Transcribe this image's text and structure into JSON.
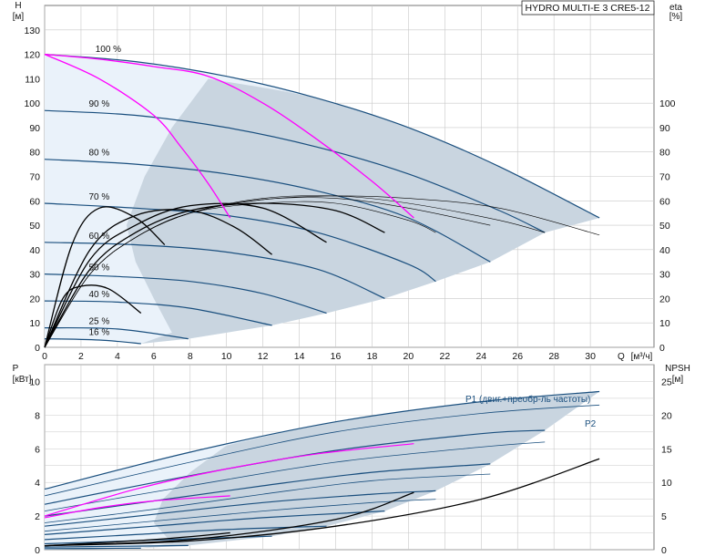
{
  "chart_data": [
    {
      "type": "line",
      "title": "HYDRO MULTI-E 3 CRE5-12",
      "ylabel": "H",
      "yunit": "[м]",
      "y2label": "eta",
      "y2unit": "[%]",
      "xlabel": "Q",
      "xunit": "[м³/ч]",
      "x_ticks": [
        0,
        2,
        4,
        6,
        8,
        10,
        12,
        14,
        16,
        18,
        20,
        22,
        24,
        26,
        28,
        30
      ],
      "y_ticks": [
        0,
        10,
        20,
        30,
        40,
        50,
        60,
        70,
        80,
        90,
        100,
        110,
        120,
        130
      ],
      "y2_ticks": [
        0,
        10,
        20,
        30,
        40,
        50,
        60,
        70,
        80,
        90,
        100
      ],
      "xlim": [
        0,
        33.5
      ],
      "ylim": [
        0,
        140
      ],
      "grid": true,
      "curve_labels": [
        "100 %",
        "90 %",
        "80 %",
        "70 %",
        "60 %",
        "50 %",
        "40 %",
        "25 %",
        "16 %"
      ],
      "head_curves": [
        {
          "speed": 100,
          "x": [
            0,
            5,
            10,
            15,
            20,
            25,
            30.5
          ],
          "y": [
            120,
            117,
            111,
            102,
            90,
            74,
            53
          ]
        },
        {
          "speed": 90,
          "x": [
            0,
            5,
            10,
            15,
            20,
            25,
            27.5
          ],
          "y": [
            97,
            95,
            90,
            82,
            71,
            56,
            47
          ]
        },
        {
          "speed": 80,
          "x": [
            0,
            5,
            10,
            15,
            20,
            24.5
          ],
          "y": [
            77,
            75,
            71,
            64,
            53,
            35
          ]
        },
        {
          "speed": 70,
          "x": [
            0,
            5,
            10,
            15,
            20,
            21.5
          ],
          "y": [
            59,
            57,
            54,
            47,
            34,
            27
          ]
        },
        {
          "speed": 60,
          "x": [
            0,
            5,
            10,
            15,
            18.7
          ],
          "y": [
            43,
            42,
            39,
            32,
            20
          ]
        },
        {
          "speed": 50,
          "x": [
            0,
            4,
            8,
            12,
            15.5
          ],
          "y": [
            30,
            29,
            27,
            22,
            14
          ]
        },
        {
          "speed": 40,
          "x": [
            0,
            4,
            8,
            12.5
          ],
          "y": [
            19,
            18.5,
            16,
            9
          ]
        },
        {
          "speed": 25,
          "x": [
            0,
            4,
            7.9
          ],
          "y": [
            8,
            7.5,
            3.5
          ]
        },
        {
          "speed": 16,
          "x": [
            0,
            3,
            5.3
          ],
          "y": [
            3.5,
            3,
            1.5
          ]
        }
      ],
      "eff_curves": [
        {
          "x": [
            0,
            2.5,
            5,
            8,
            12,
            16,
            20,
            25,
            30.5
          ],
          "y": [
            0,
            30,
            45,
            55,
            60.5,
            62,
            61,
            57,
            46
          ]
        },
        {
          "x": [
            0,
            2.5,
            5,
            8,
            12,
            16,
            20,
            25,
            27.5
          ],
          "y": [
            0,
            30,
            45,
            55,
            61,
            62,
            59,
            52,
            47
          ]
        },
        {
          "x": [
            0,
            2.5,
            5,
            8,
            12,
            16,
            20,
            24.5
          ],
          "y": [
            0,
            30,
            45,
            55,
            60.5,
            61,
            57,
            50
          ]
        },
        {
          "x": [
            0,
            2.5,
            5,
            8,
            12,
            16,
            20,
            21.5
          ],
          "y": [
            0,
            30,
            45,
            55,
            59,
            59,
            52,
            47
          ]
        },
        {
          "x": [
            0,
            2.5,
            5,
            8,
            12,
            16,
            18.7
          ],
          "y": [
            0,
            32,
            47,
            56,
            59,
            56,
            47
          ]
        },
        {
          "x": [
            0,
            2.5,
            5,
            8,
            12,
            15.5
          ],
          "y": [
            0,
            36,
            50,
            58,
            57,
            43
          ]
        },
        {
          "x": [
            0,
            2.5,
            5,
            8,
            10.5,
            12.5
          ],
          "y": [
            0,
            40,
            54,
            56,
            49,
            38
          ]
        },
        {
          "x": [
            0,
            1.5,
            3,
            5,
            6.6
          ],
          "y": [
            0,
            42,
            57,
            53,
            42
          ]
        },
        {
          "x": [
            0,
            1,
            2,
            3.5,
            5.3
          ],
          "y": [
            0,
            20,
            25,
            24,
            14
          ]
        }
      ],
      "constant_pressure_curves": [
        {
          "x": [
            0,
            3,
            6,
            9,
            12,
            15,
            18,
            20.3
          ],
          "y": [
            120,
            118,
            115,
            111,
            100,
            85,
            68,
            53
          ]
        },
        {
          "x": [
            0,
            3,
            6,
            7.5,
            9,
            10.2
          ],
          "y": [
            120,
            110,
            95,
            82,
            67,
            53
          ]
        }
      ]
    },
    {
      "type": "line",
      "ylabel": "P",
      "yunit": "[кВт]",
      "y2label": "NPSH",
      "y2unit": "[м]",
      "y_ticks": [
        0,
        2,
        4,
        6,
        8,
        10
      ],
      "y2_ticks": [
        0,
        5,
        10,
        15,
        20,
        25
      ],
      "ylim": [
        0,
        11
      ],
      "y2lim": [
        0,
        27.5
      ],
      "legend": [
        "P1 (двиг.+преобр-ль частоты)",
        "P2"
      ],
      "p1_curves": [
        {
          "x": [
            0,
            8,
            16,
            24,
            30.5
          ],
          "y": [
            3.6,
            5.8,
            7.6,
            8.8,
            9.4
          ]
        },
        {
          "x": [
            0,
            8,
            16,
            24,
            27.5
          ],
          "y": [
            2.7,
            4.4,
            5.9,
            6.9,
            7.1
          ]
        },
        {
          "x": [
            0,
            6,
            12,
            18,
            24.5
          ],
          "y": [
            2.0,
            2.9,
            3.8,
            4.6,
            5.1
          ]
        },
        {
          "x": [
            0,
            6,
            12,
            18,
            21.5
          ],
          "y": [
            1.4,
            2.1,
            2.8,
            3.3,
            3.5
          ]
        },
        {
          "x": [
            0,
            6,
            12,
            18.7
          ],
          "y": [
            0.9,
            1.4,
            1.9,
            2.3
          ]
        },
        {
          "x": [
            0,
            5,
            10,
            15.5
          ],
          "y": [
            0.6,
            0.9,
            1.2,
            1.4
          ]
        },
        {
          "x": [
            0,
            4,
            8,
            12.5
          ],
          "y": [
            0.35,
            0.5,
            0.65,
            0.8
          ]
        },
        {
          "x": [
            0,
            4,
            7.9
          ],
          "y": [
            0.15,
            0.2,
            0.25
          ]
        },
        {
          "x": [
            0,
            5.3
          ],
          "y": [
            0.06,
            0.09
          ]
        }
      ],
      "p2_curves": [
        {
          "x": [
            0,
            8,
            16,
            24,
            30.5
          ],
          "y": [
            3.2,
            5.2,
            7.0,
            8.1,
            8.6
          ]
        },
        {
          "x": [
            0,
            8,
            16,
            24,
            27.5
          ],
          "y": [
            2.3,
            3.8,
            5.2,
            6.1,
            6.4
          ]
        },
        {
          "x": [
            0,
            6,
            12,
            18,
            24.5
          ],
          "y": [
            1.6,
            2.4,
            3.3,
            4.1,
            4.5
          ]
        },
        {
          "x": [
            0,
            6,
            12,
            18,
            21.5
          ],
          "y": [
            1.1,
            1.7,
            2.3,
            2.8,
            3.0
          ]
        }
      ],
      "constant_pressure_power": [
        {
          "x": [
            0,
            5,
            10,
            15,
            20.3
          ],
          "y": [
            2.0,
            3.6,
            4.8,
            5.7,
            6.3
          ]
        },
        {
          "x": [
            0,
            3,
            6,
            10.2
          ],
          "y": [
            1.9,
            2.5,
            2.9,
            3.2
          ]
        }
      ],
      "npsh_curves": [
        {
          "x": [
            0,
            8,
            16,
            24,
            30.5
          ],
          "y": [
            0.6,
            1.3,
            3.5,
            7.5,
            13.5
          ]
        },
        {
          "x": [
            0,
            8,
            16,
            20.3
          ],
          "y": [
            0.6,
            1.5,
            4.5,
            8.5
          ]
        },
        {
          "x": [
            0,
            6,
            10.2
          ],
          "y": [
            0.6,
            1.5,
            2.5
          ]
        }
      ]
    }
  ],
  "colors": {
    "curve": "#1a4f7e",
    "efficiency": "#000000",
    "constant_pressure": "#ff00ff",
    "area": "#c9d5e0",
    "area_light": "#eaf2fa",
    "grid": "#c8c8c8"
  }
}
